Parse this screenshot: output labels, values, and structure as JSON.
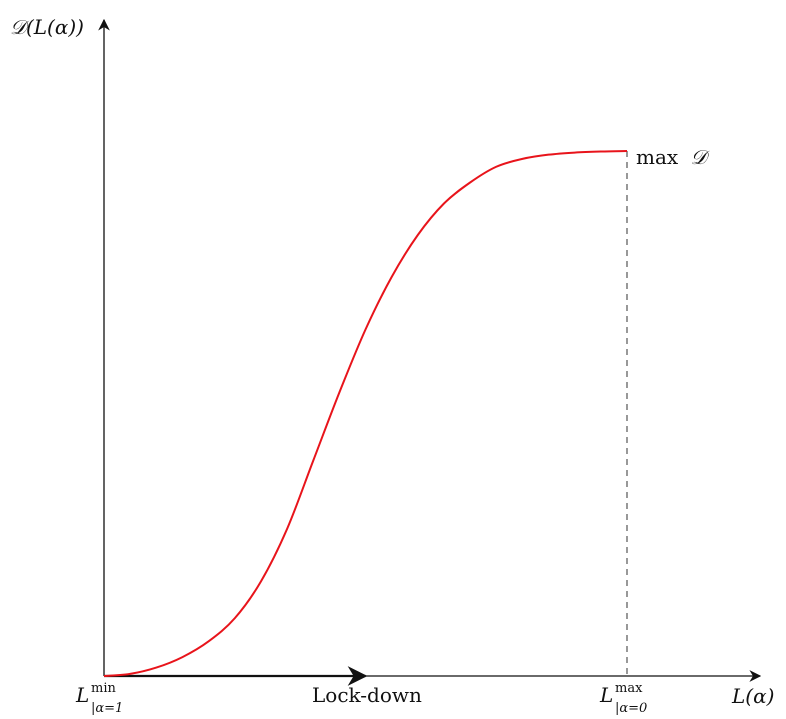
{
  "chart_data": {
    "type": "line",
    "title": "",
    "ylabel": "𝒟(L(α))",
    "xlabel": "L(α)",
    "xlim": [
      0,
      1
    ],
    "ylim": [
      0,
      1
    ],
    "grid": false,
    "series": [
      {
        "color": "#e8141b",
        "x": [
          0.0,
          0.05,
          0.1,
          0.15,
          0.2,
          0.25,
          0.3,
          0.35,
          0.4,
          0.45,
          0.5,
          0.55,
          0.6,
          0.65,
          0.7,
          0.75,
          0.8,
          0.85,
          0.9,
          0.95,
          1.0
        ],
        "y": [
          0.0,
          0.004,
          0.016,
          0.036,
          0.066,
          0.11,
          0.18,
          0.28,
          0.41,
          0.54,
          0.66,
          0.76,
          0.84,
          0.9,
          0.94,
          0.97,
          0.985,
          0.993,
          0.997,
          0.999,
          1.0
        ]
      }
    ],
    "annotations": {
      "max_label": {
        "prefix": "max",
        "symbol": "𝒟"
      },
      "x_min_tick": {
        "base": "L",
        "sup": "min",
        "sub": "|α=1"
      },
      "x_max_tick": {
        "base": "L",
        "sup": "max",
        "sub": "|α=0"
      },
      "arrow_label": "Lock-down",
      "arrow_to_x": 0.5
    }
  }
}
